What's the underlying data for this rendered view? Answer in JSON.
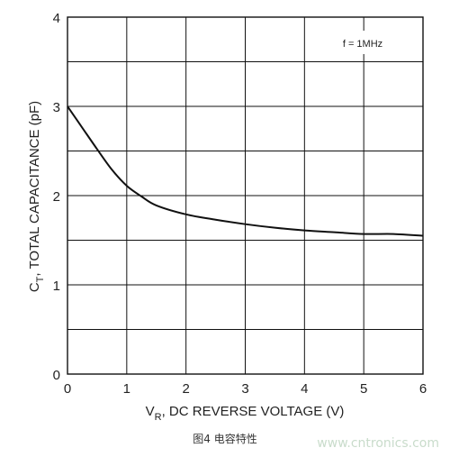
{
  "chart_data": {
    "type": "line",
    "annotation": "f = 1MHz",
    "ylabel": "C_T, TOTAL CAPACITANCE (pF)",
    "ylabel_main": "C",
    "ylabel_sub": "T",
    "ylabel_rest": ", TOTAL CAPACITANCE (pF)",
    "xlabel_main": "V",
    "xlabel_sub": "R",
    "xlabel_rest": ", DC REVERSE VOLTAGE (V)",
    "xlabel": "V_R, DC REVERSE VOLTAGE (V)",
    "xlim": [
      0,
      6
    ],
    "ylim": [
      0,
      4
    ],
    "x_ticks": [
      "0",
      "1",
      "2",
      "3",
      "4",
      "5",
      "6"
    ],
    "y_ticks": [
      "0",
      "1",
      "2",
      "3",
      "4"
    ],
    "grid": true,
    "series": [
      {
        "x": [
          0,
          0.25,
          0.5,
          0.75,
          1.0,
          1.25,
          1.5,
          2.0,
          2.5,
          3.0,
          3.5,
          4.0,
          4.5,
          5.0,
          5.5,
          6.0
        ],
        "values": [
          3.0,
          2.76,
          2.52,
          2.29,
          2.11,
          1.99,
          1.89,
          1.79,
          1.73,
          1.68,
          1.64,
          1.61,
          1.59,
          1.57,
          1.57,
          1.55
        ]
      }
    ],
    "line_color": "#111111"
  },
  "caption": "图4  电容特性",
  "watermark": "www.cntronics.com"
}
